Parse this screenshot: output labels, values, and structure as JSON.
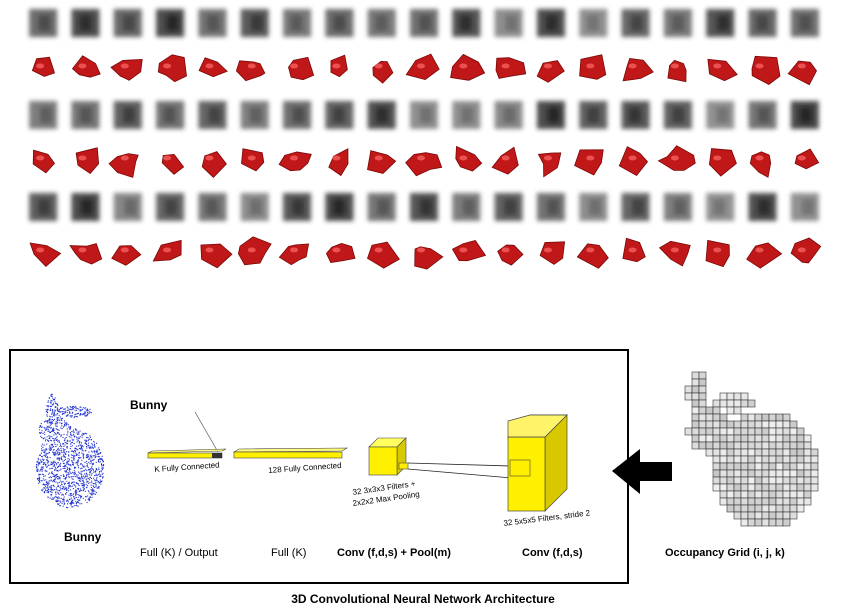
{
  "filters": {
    "rows": 6,
    "cols": 19,
    "accent_red": "#c01818"
  },
  "architecture": {
    "bunny_tag": "Bunny",
    "bunny_label": "Bunny",
    "layers": [
      {
        "name": "Full (K) / Output",
        "desc": "K Fully Connected"
      },
      {
        "name": "Full (K)",
        "desc": "128 Fully Connected"
      },
      {
        "name": "Conv (f,d,s) + Pool(m)",
        "desc_line1": "32 3x3x3 Filters +",
        "desc_line2": "2x2x2 Max Pooling"
      },
      {
        "name": "Conv (f,d,s)",
        "desc": "32 5x5x5 Filters, stride 2"
      }
    ],
    "occupancy_label": "Occupancy Grid (i, j, k)",
    "caption": "3D Convolutional Neural Network Architecture",
    "cube_color": "#ffee00"
  }
}
